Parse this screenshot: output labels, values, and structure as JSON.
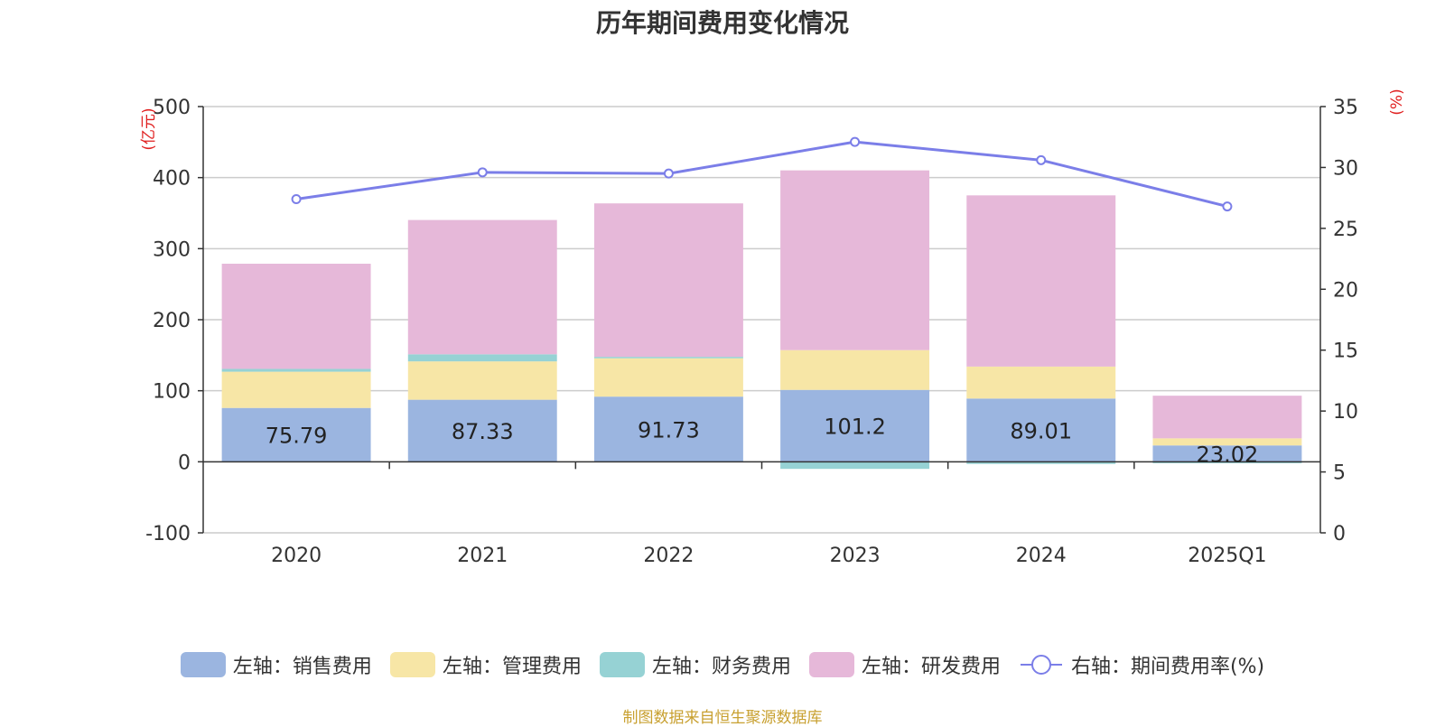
{
  "chart_data": {
    "type": "bar",
    "title": "历年期间费用变化情况",
    "categories": [
      "2020",
      "2021",
      "2022",
      "2023",
      "2024",
      "2025Q1"
    ],
    "left_axis": {
      "unit": "(亿元)",
      "ylim": [
        -100,
        500
      ],
      "ticks": [
        "-100",
        "0",
        "100",
        "200",
        "300",
        "400",
        "500"
      ]
    },
    "right_axis": {
      "unit": "(%)",
      "ylim": [
        0,
        35
      ],
      "ticks": [
        "0",
        "5",
        "10",
        "15",
        "20",
        "25",
        "30",
        "35"
      ]
    },
    "grid": true,
    "series": [
      {
        "name": "左轴：销售费用",
        "type": "bar",
        "axis": "left",
        "color": "#9bb5e0",
        "values": [
          75.79,
          87.33,
          91.73,
          101.2,
          89.01,
          23.02
        ],
        "show_labels": true
      },
      {
        "name": "左轴：管理费用",
        "type": "bar",
        "axis": "left",
        "color": "#f7e6a6",
        "values": [
          51,
          54,
          54,
          56,
          45,
          10
        ],
        "show_labels": false
      },
      {
        "name": "左轴：财务费用",
        "type": "bar",
        "axis": "left",
        "color": "#96d2d4",
        "values": [
          4,
          10,
          2,
          -10,
          -3,
          -2
        ],
        "show_labels": false
      },
      {
        "name": "左轴：研发费用",
        "type": "bar",
        "axis": "left",
        "color": "#e6b8d9",
        "values": [
          148,
          189,
          216,
          253,
          241,
          60
        ],
        "show_labels": false
      },
      {
        "name": "右轴：期间费用率(%)",
        "type": "line",
        "axis": "right",
        "color": "#7b7ee8",
        "values": [
          27.4,
          29.6,
          29.5,
          32.1,
          30.6,
          26.8
        ]
      }
    ],
    "legend_position": "bottom",
    "source_note": "制图数据来自恒生聚源数据库"
  }
}
